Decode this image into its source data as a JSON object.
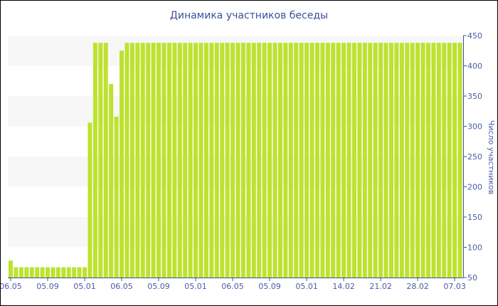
{
  "chart_data": {
    "type": "bar",
    "title": "Динамика участников беседы",
    "ylabel": "Число участников",
    "xlabel": "",
    "ylim": [
      50,
      450
    ],
    "yticks": [
      50,
      100,
      150,
      200,
      250,
      300,
      350,
      400,
      450
    ],
    "y_axis_side": "right",
    "grid": "alternating horizontal bands",
    "bar_color": "#bde22f",
    "text_color": "#4a5ca8",
    "xtick_labels": [
      "06.05",
      "05.09",
      "05.01",
      "06.05",
      "05.09",
      "05.01",
      "06.05",
      "05.09",
      "05.01",
      "14.02",
      "21.02",
      "28.02",
      "07.03"
    ],
    "xtick_every_n_bars": 7,
    "values": [
      78,
      67,
      67,
      67,
      67,
      67,
      67,
      67,
      67,
      67,
      67,
      67,
      67,
      67,
      67,
      306,
      438,
      438,
      438,
      370,
      316,
      425,
      438,
      438,
      438,
      438,
      438,
      438,
      438,
      438,
      438,
      438,
      438,
      438,
      438,
      438,
      438,
      438,
      438,
      438,
      438,
      438,
      438,
      438,
      438,
      438,
      438,
      438,
      438,
      438,
      438,
      438,
      438,
      438,
      438,
      438,
      438,
      438,
      438,
      438,
      438,
      438,
      438,
      438,
      438,
      438,
      438,
      438,
      438,
      438,
      438,
      438,
      438,
      438,
      438,
      438,
      438,
      438,
      438,
      438,
      438,
      438,
      438,
      438,
      438,
      438
    ]
  }
}
